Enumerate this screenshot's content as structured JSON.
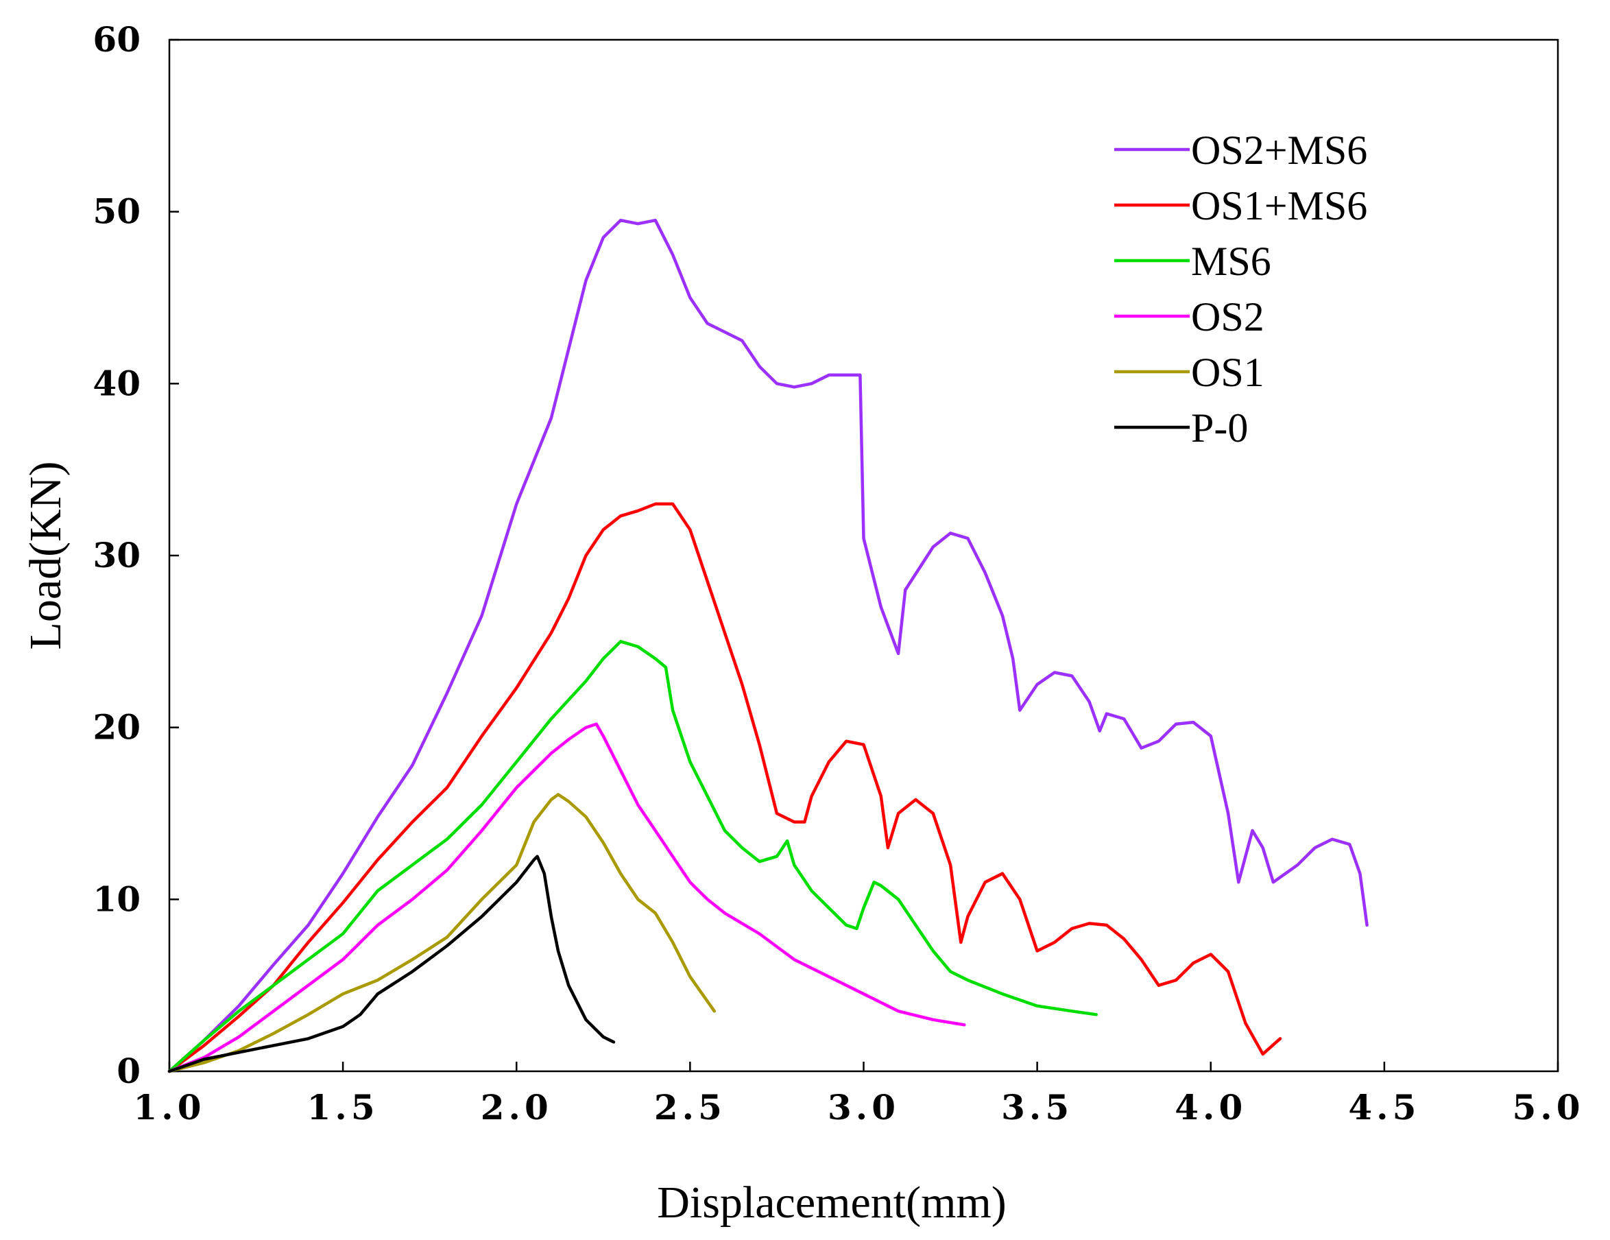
{
  "chart_data": {
    "type": "line",
    "title": "",
    "xlabel": "Displacement(mm)",
    "ylabel": "Load(KN)",
    "xlim": [
      1.0,
      5.0
    ],
    "ylim": [
      0,
      60
    ],
    "x_ticks": [
      "1.0",
      "1.5",
      "2.0",
      "2.5",
      "3.0",
      "3.5",
      "4.0",
      "4.5",
      "5.0"
    ],
    "y_ticks": [
      "0",
      "10",
      "20",
      "30",
      "40",
      "50",
      "60"
    ],
    "grid": false,
    "legend_position": "top-right",
    "series": [
      {
        "name": "OS2+MS6",
        "color": "#9b30ff",
        "points": [
          [
            1.0,
            0
          ],
          [
            1.1,
            1.8
          ],
          [
            1.2,
            3.8
          ],
          [
            1.3,
            6.2
          ],
          [
            1.4,
            8.5
          ],
          [
            1.5,
            11.5
          ],
          [
            1.6,
            14.8
          ],
          [
            1.7,
            17.8
          ],
          [
            1.8,
            22
          ],
          [
            1.9,
            26.5
          ],
          [
            2.0,
            33
          ],
          [
            2.1,
            38
          ],
          [
            2.15,
            42
          ],
          [
            2.2,
            46
          ],
          [
            2.25,
            48.5
          ],
          [
            2.3,
            49.5
          ],
          [
            2.35,
            49.3
          ],
          [
            2.4,
            49.5
          ],
          [
            2.45,
            47.5
          ],
          [
            2.5,
            45
          ],
          [
            2.55,
            43.5
          ],
          [
            2.6,
            43
          ],
          [
            2.65,
            42.5
          ],
          [
            2.7,
            41
          ],
          [
            2.75,
            40
          ],
          [
            2.8,
            39.8
          ],
          [
            2.85,
            40
          ],
          [
            2.9,
            40.5
          ],
          [
            2.95,
            40.5
          ],
          [
            2.99,
            40.5
          ],
          [
            3.0,
            31
          ],
          [
            3.05,
            27
          ],
          [
            3.1,
            24.3
          ],
          [
            3.12,
            28
          ],
          [
            3.2,
            30.5
          ],
          [
            3.25,
            31.3
          ],
          [
            3.3,
            31
          ],
          [
            3.35,
            29
          ],
          [
            3.4,
            26.5
          ],
          [
            3.43,
            24
          ],
          [
            3.45,
            21
          ],
          [
            3.5,
            22.5
          ],
          [
            3.55,
            23.2
          ],
          [
            3.6,
            23
          ],
          [
            3.65,
            21.5
          ],
          [
            3.68,
            19.8
          ],
          [
            3.7,
            20.8
          ],
          [
            3.75,
            20.5
          ],
          [
            3.8,
            18.8
          ],
          [
            3.85,
            19.2
          ],
          [
            3.9,
            20.2
          ],
          [
            3.95,
            20.3
          ],
          [
            4.0,
            19.5
          ],
          [
            4.05,
            15
          ],
          [
            4.08,
            11
          ],
          [
            4.12,
            14
          ],
          [
            4.15,
            13
          ],
          [
            4.18,
            11
          ],
          [
            4.25,
            12
          ],
          [
            4.3,
            13
          ],
          [
            4.35,
            13.5
          ],
          [
            4.4,
            13.2
          ],
          [
            4.43,
            11.5
          ],
          [
            4.45,
            8.5
          ]
        ]
      },
      {
        "name": "OS1+MS6",
        "color": "#ff0000",
        "points": [
          [
            1.0,
            0
          ],
          [
            1.1,
            1.5
          ],
          [
            1.2,
            3.2
          ],
          [
            1.3,
            5
          ],
          [
            1.4,
            7.5
          ],
          [
            1.5,
            9.8
          ],
          [
            1.6,
            12.3
          ],
          [
            1.7,
            14.5
          ],
          [
            1.8,
            16.5
          ],
          [
            1.9,
            19.5
          ],
          [
            2.0,
            22.3
          ],
          [
            2.1,
            25.5
          ],
          [
            2.15,
            27.5
          ],
          [
            2.2,
            30
          ],
          [
            2.25,
            31.5
          ],
          [
            2.3,
            32.3
          ],
          [
            2.35,
            32.6
          ],
          [
            2.4,
            33
          ],
          [
            2.45,
            33
          ],
          [
            2.5,
            31.5
          ],
          [
            2.55,
            28.5
          ],
          [
            2.6,
            25.5
          ],
          [
            2.65,
            22.5
          ],
          [
            2.7,
            19
          ],
          [
            2.75,
            15
          ],
          [
            2.8,
            14.5
          ],
          [
            2.83,
            14.5
          ],
          [
            2.85,
            16
          ],
          [
            2.9,
            18
          ],
          [
            2.95,
            19.2
          ],
          [
            3.0,
            19
          ],
          [
            3.05,
            16
          ],
          [
            3.07,
            13
          ],
          [
            3.1,
            15
          ],
          [
            3.15,
            15.8
          ],
          [
            3.2,
            15
          ],
          [
            3.25,
            12
          ],
          [
            3.28,
            7.5
          ],
          [
            3.3,
            9
          ],
          [
            3.35,
            11
          ],
          [
            3.4,
            11.5
          ],
          [
            3.45,
            10
          ],
          [
            3.5,
            7
          ],
          [
            3.55,
            7.5
          ],
          [
            3.6,
            8.3
          ],
          [
            3.65,
            8.6
          ],
          [
            3.7,
            8.5
          ],
          [
            3.75,
            7.7
          ],
          [
            3.8,
            6.5
          ],
          [
            3.85,
            5
          ],
          [
            3.9,
            5.3
          ],
          [
            3.95,
            6.3
          ],
          [
            4.0,
            6.8
          ],
          [
            4.05,
            5.8
          ],
          [
            4.1,
            2.8
          ],
          [
            4.15,
            1
          ],
          [
            4.2,
            1.9
          ]
        ]
      },
      {
        "name": "MS6",
        "color": "#00dd00",
        "points": [
          [
            1.0,
            0
          ],
          [
            1.1,
            1.8
          ],
          [
            1.2,
            3.5
          ],
          [
            1.3,
            5
          ],
          [
            1.4,
            6.5
          ],
          [
            1.5,
            8
          ],
          [
            1.6,
            10.5
          ],
          [
            1.7,
            12
          ],
          [
            1.8,
            13.5
          ],
          [
            1.9,
            15.5
          ],
          [
            2.0,
            18
          ],
          [
            2.1,
            20.5
          ],
          [
            2.2,
            22.7
          ],
          [
            2.25,
            24
          ],
          [
            2.3,
            25
          ],
          [
            2.35,
            24.7
          ],
          [
            2.4,
            24
          ],
          [
            2.43,
            23.5
          ],
          [
            2.45,
            21
          ],
          [
            2.5,
            18
          ],
          [
            2.55,
            16
          ],
          [
            2.6,
            14
          ],
          [
            2.65,
            13
          ],
          [
            2.7,
            12.2
          ],
          [
            2.75,
            12.5
          ],
          [
            2.78,
            13.4
          ],
          [
            2.8,
            12
          ],
          [
            2.85,
            10.5
          ],
          [
            2.9,
            9.5
          ],
          [
            2.95,
            8.5
          ],
          [
            2.98,
            8.3
          ],
          [
            3.0,
            9.5
          ],
          [
            3.03,
            11
          ],
          [
            3.05,
            10.8
          ],
          [
            3.1,
            10
          ],
          [
            3.15,
            8.5
          ],
          [
            3.2,
            7
          ],
          [
            3.25,
            5.8
          ],
          [
            3.3,
            5.3
          ],
          [
            3.4,
            4.5
          ],
          [
            3.5,
            3.8
          ],
          [
            3.6,
            3.5
          ],
          [
            3.67,
            3.3
          ]
        ]
      },
      {
        "name": "OS2",
        "color": "#ff00ff",
        "points": [
          [
            1.0,
            0
          ],
          [
            1.1,
            0.8
          ],
          [
            1.2,
            2
          ],
          [
            1.3,
            3.5
          ],
          [
            1.4,
            5
          ],
          [
            1.5,
            6.5
          ],
          [
            1.6,
            8.5
          ],
          [
            1.7,
            10
          ],
          [
            1.8,
            11.7
          ],
          [
            1.9,
            14
          ],
          [
            2.0,
            16.5
          ],
          [
            2.1,
            18.5
          ],
          [
            2.15,
            19.3
          ],
          [
            2.2,
            20
          ],
          [
            2.23,
            20.2
          ],
          [
            2.25,
            19.5
          ],
          [
            2.3,
            17.5
          ],
          [
            2.35,
            15.5
          ],
          [
            2.4,
            14
          ],
          [
            2.45,
            12.5
          ],
          [
            2.5,
            11
          ],
          [
            2.55,
            10
          ],
          [
            2.6,
            9.2
          ],
          [
            2.7,
            8
          ],
          [
            2.8,
            6.5
          ],
          [
            2.9,
            5.5
          ],
          [
            3.0,
            4.5
          ],
          [
            3.1,
            3.5
          ],
          [
            3.2,
            3
          ],
          [
            3.29,
            2.7
          ]
        ]
      },
      {
        "name": "OS1",
        "color": "#a89a00",
        "points": [
          [
            1.0,
            0
          ],
          [
            1.1,
            0.5
          ],
          [
            1.2,
            1.2
          ],
          [
            1.3,
            2.2
          ],
          [
            1.4,
            3.3
          ],
          [
            1.5,
            4.5
          ],
          [
            1.6,
            5.3
          ],
          [
            1.7,
            6.5
          ],
          [
            1.8,
            7.8
          ],
          [
            1.9,
            10
          ],
          [
            2.0,
            12
          ],
          [
            2.05,
            14.5
          ],
          [
            2.1,
            15.8
          ],
          [
            2.12,
            16.1
          ],
          [
            2.15,
            15.7
          ],
          [
            2.2,
            14.8
          ],
          [
            2.25,
            13.3
          ],
          [
            2.3,
            11.5
          ],
          [
            2.35,
            10
          ],
          [
            2.4,
            9.2
          ],
          [
            2.45,
            7.5
          ],
          [
            2.5,
            5.5
          ],
          [
            2.57,
            3.5
          ]
        ]
      },
      {
        "name": "P-0",
        "color": "#000000",
        "points": [
          [
            1.0,
            0
          ],
          [
            1.1,
            0.7
          ],
          [
            1.2,
            1.1
          ],
          [
            1.3,
            1.5
          ],
          [
            1.4,
            1.9
          ],
          [
            1.5,
            2.6
          ],
          [
            1.55,
            3.3
          ],
          [
            1.6,
            4.5
          ],
          [
            1.7,
            5.8
          ],
          [
            1.8,
            7.3
          ],
          [
            1.9,
            9
          ],
          [
            2.0,
            11
          ],
          [
            2.05,
            12.3
          ],
          [
            2.06,
            12.5
          ],
          [
            2.08,
            11.5
          ],
          [
            2.1,
            9
          ],
          [
            2.12,
            7
          ],
          [
            2.15,
            5
          ],
          [
            2.2,
            3
          ],
          [
            2.25,
            2
          ],
          [
            2.28,
            1.7
          ]
        ]
      }
    ]
  }
}
